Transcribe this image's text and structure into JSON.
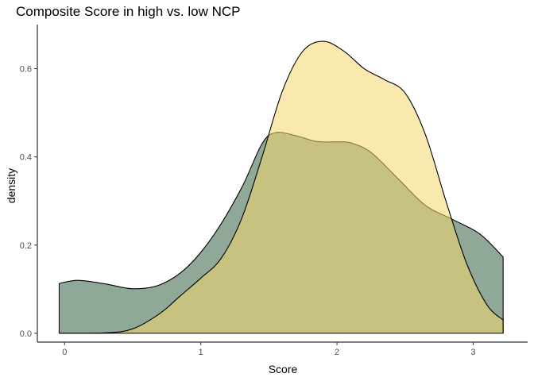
{
  "chart_data": {
    "type": "area",
    "title": "Composite Score in high vs. low NCP",
    "xlabel": "Score",
    "ylabel": "density",
    "xlim": [
      -0.2,
      3.4
    ],
    "ylim": [
      -0.02,
      0.7
    ],
    "x_ticks": [
      "0",
      "1",
      "2",
      "3"
    ],
    "y_ticks": [
      "0.0",
      "0.2",
      "0.4",
      "0.6"
    ],
    "grid": false,
    "legend": "none",
    "series": [
      {
        "color": "#8FA898",
        "alpha": 1.0,
        "points": [
          [
            -0.04,
            0.113
          ],
          [
            0.1,
            0.12
          ],
          [
            0.3,
            0.112
          ],
          [
            0.5,
            0.101
          ],
          [
            0.7,
            0.11
          ],
          [
            0.9,
            0.15
          ],
          [
            1.1,
            0.225
          ],
          [
            1.3,
            0.33
          ],
          [
            1.45,
            0.43
          ],
          [
            1.55,
            0.455
          ],
          [
            1.7,
            0.448
          ],
          [
            1.85,
            0.435
          ],
          [
            2.0,
            0.434
          ],
          [
            2.1,
            0.432
          ],
          [
            2.25,
            0.41
          ],
          [
            2.45,
            0.35
          ],
          [
            2.65,
            0.29
          ],
          [
            2.85,
            0.258
          ],
          [
            3.05,
            0.225
          ],
          [
            3.22,
            0.173
          ]
        ]
      },
      {
        "color": "#F5D76E",
        "alpha": 0.55,
        "points": [
          [
            -0.04,
            0.0
          ],
          [
            0.3,
            0.001
          ],
          [
            0.5,
            0.01
          ],
          [
            0.7,
            0.045
          ],
          [
            0.85,
            0.085
          ],
          [
            1.0,
            0.125
          ],
          [
            1.15,
            0.17
          ],
          [
            1.3,
            0.26
          ],
          [
            1.45,
            0.4
          ],
          [
            1.6,
            0.55
          ],
          [
            1.75,
            0.64
          ],
          [
            1.9,
            0.662
          ],
          [
            2.05,
            0.64
          ],
          [
            2.2,
            0.6
          ],
          [
            2.35,
            0.575
          ],
          [
            2.5,
            0.545
          ],
          [
            2.65,
            0.45
          ],
          [
            2.8,
            0.3
          ],
          [
            2.95,
            0.16
          ],
          [
            3.1,
            0.065
          ],
          [
            3.22,
            0.03
          ]
        ]
      }
    ]
  }
}
